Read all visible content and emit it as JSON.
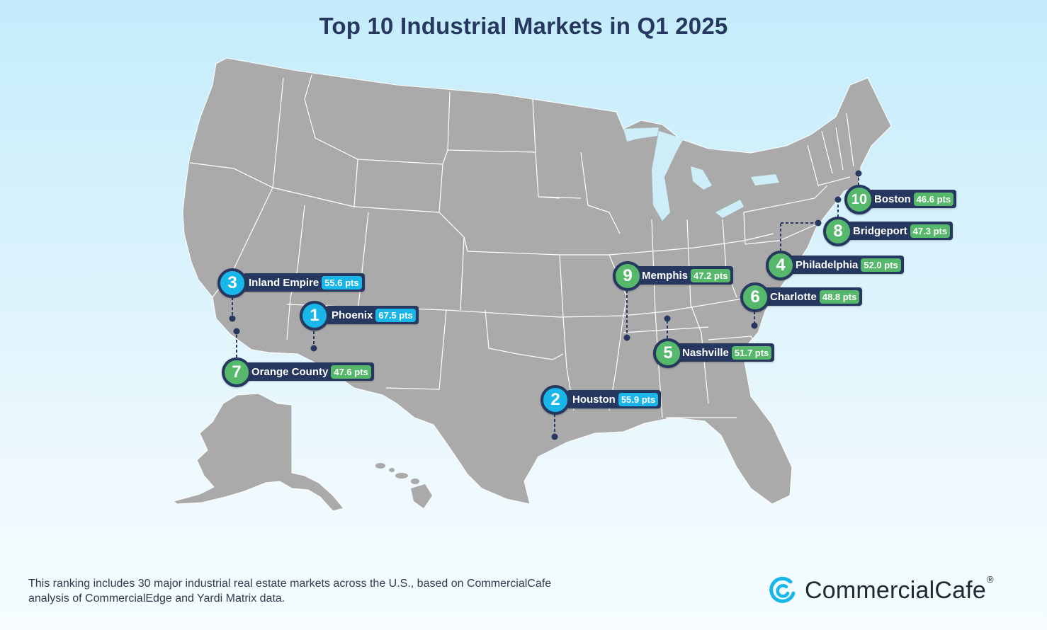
{
  "title": "Top 10 Industrial Markets in Q1 2025",
  "colors": {
    "top3": "#18b6e9",
    "others": "#56b86b",
    "navy": "#26385f",
    "land": "#aaaaaa",
    "border": "#ffffff"
  },
  "markets": [
    {
      "rank": "1",
      "city": "Phoenix",
      "points": "67.5 pts",
      "color": "blue"
    },
    {
      "rank": "2",
      "city": "Houston",
      "points": "55.9 pts",
      "color": "blue"
    },
    {
      "rank": "3",
      "city": "Inland Empire",
      "points": "55.6 pts",
      "color": "blue"
    },
    {
      "rank": "4",
      "city": "Philadelphia",
      "points": "52.0 pts",
      "color": "green"
    },
    {
      "rank": "5",
      "city": "Nashville",
      "points": "51.7 pts",
      "color": "green"
    },
    {
      "rank": "6",
      "city": "Charlotte",
      "points": "48.8 pts",
      "color": "green"
    },
    {
      "rank": "7",
      "city": "Orange County",
      "points": "47.6 pts",
      "color": "green"
    },
    {
      "rank": "8",
      "city": "Bridgeport",
      "points": "47.3 pts",
      "color": "green"
    },
    {
      "rank": "9",
      "city": "Memphis",
      "points": "47.2 pts",
      "color": "green"
    },
    {
      "rank": "10",
      "city": "Boston",
      "points": "46.6 pts",
      "color": "green"
    }
  ],
  "footnote": "This ranking includes 30 major industrial real estate markets across the U.S., based on CommercialCafe analysis of CommercialEdge and Yardi Matrix data.",
  "logo": {
    "text": "CommercialCafe",
    "mark": "®",
    "icon": "commercialcafe-logo-icon"
  }
}
